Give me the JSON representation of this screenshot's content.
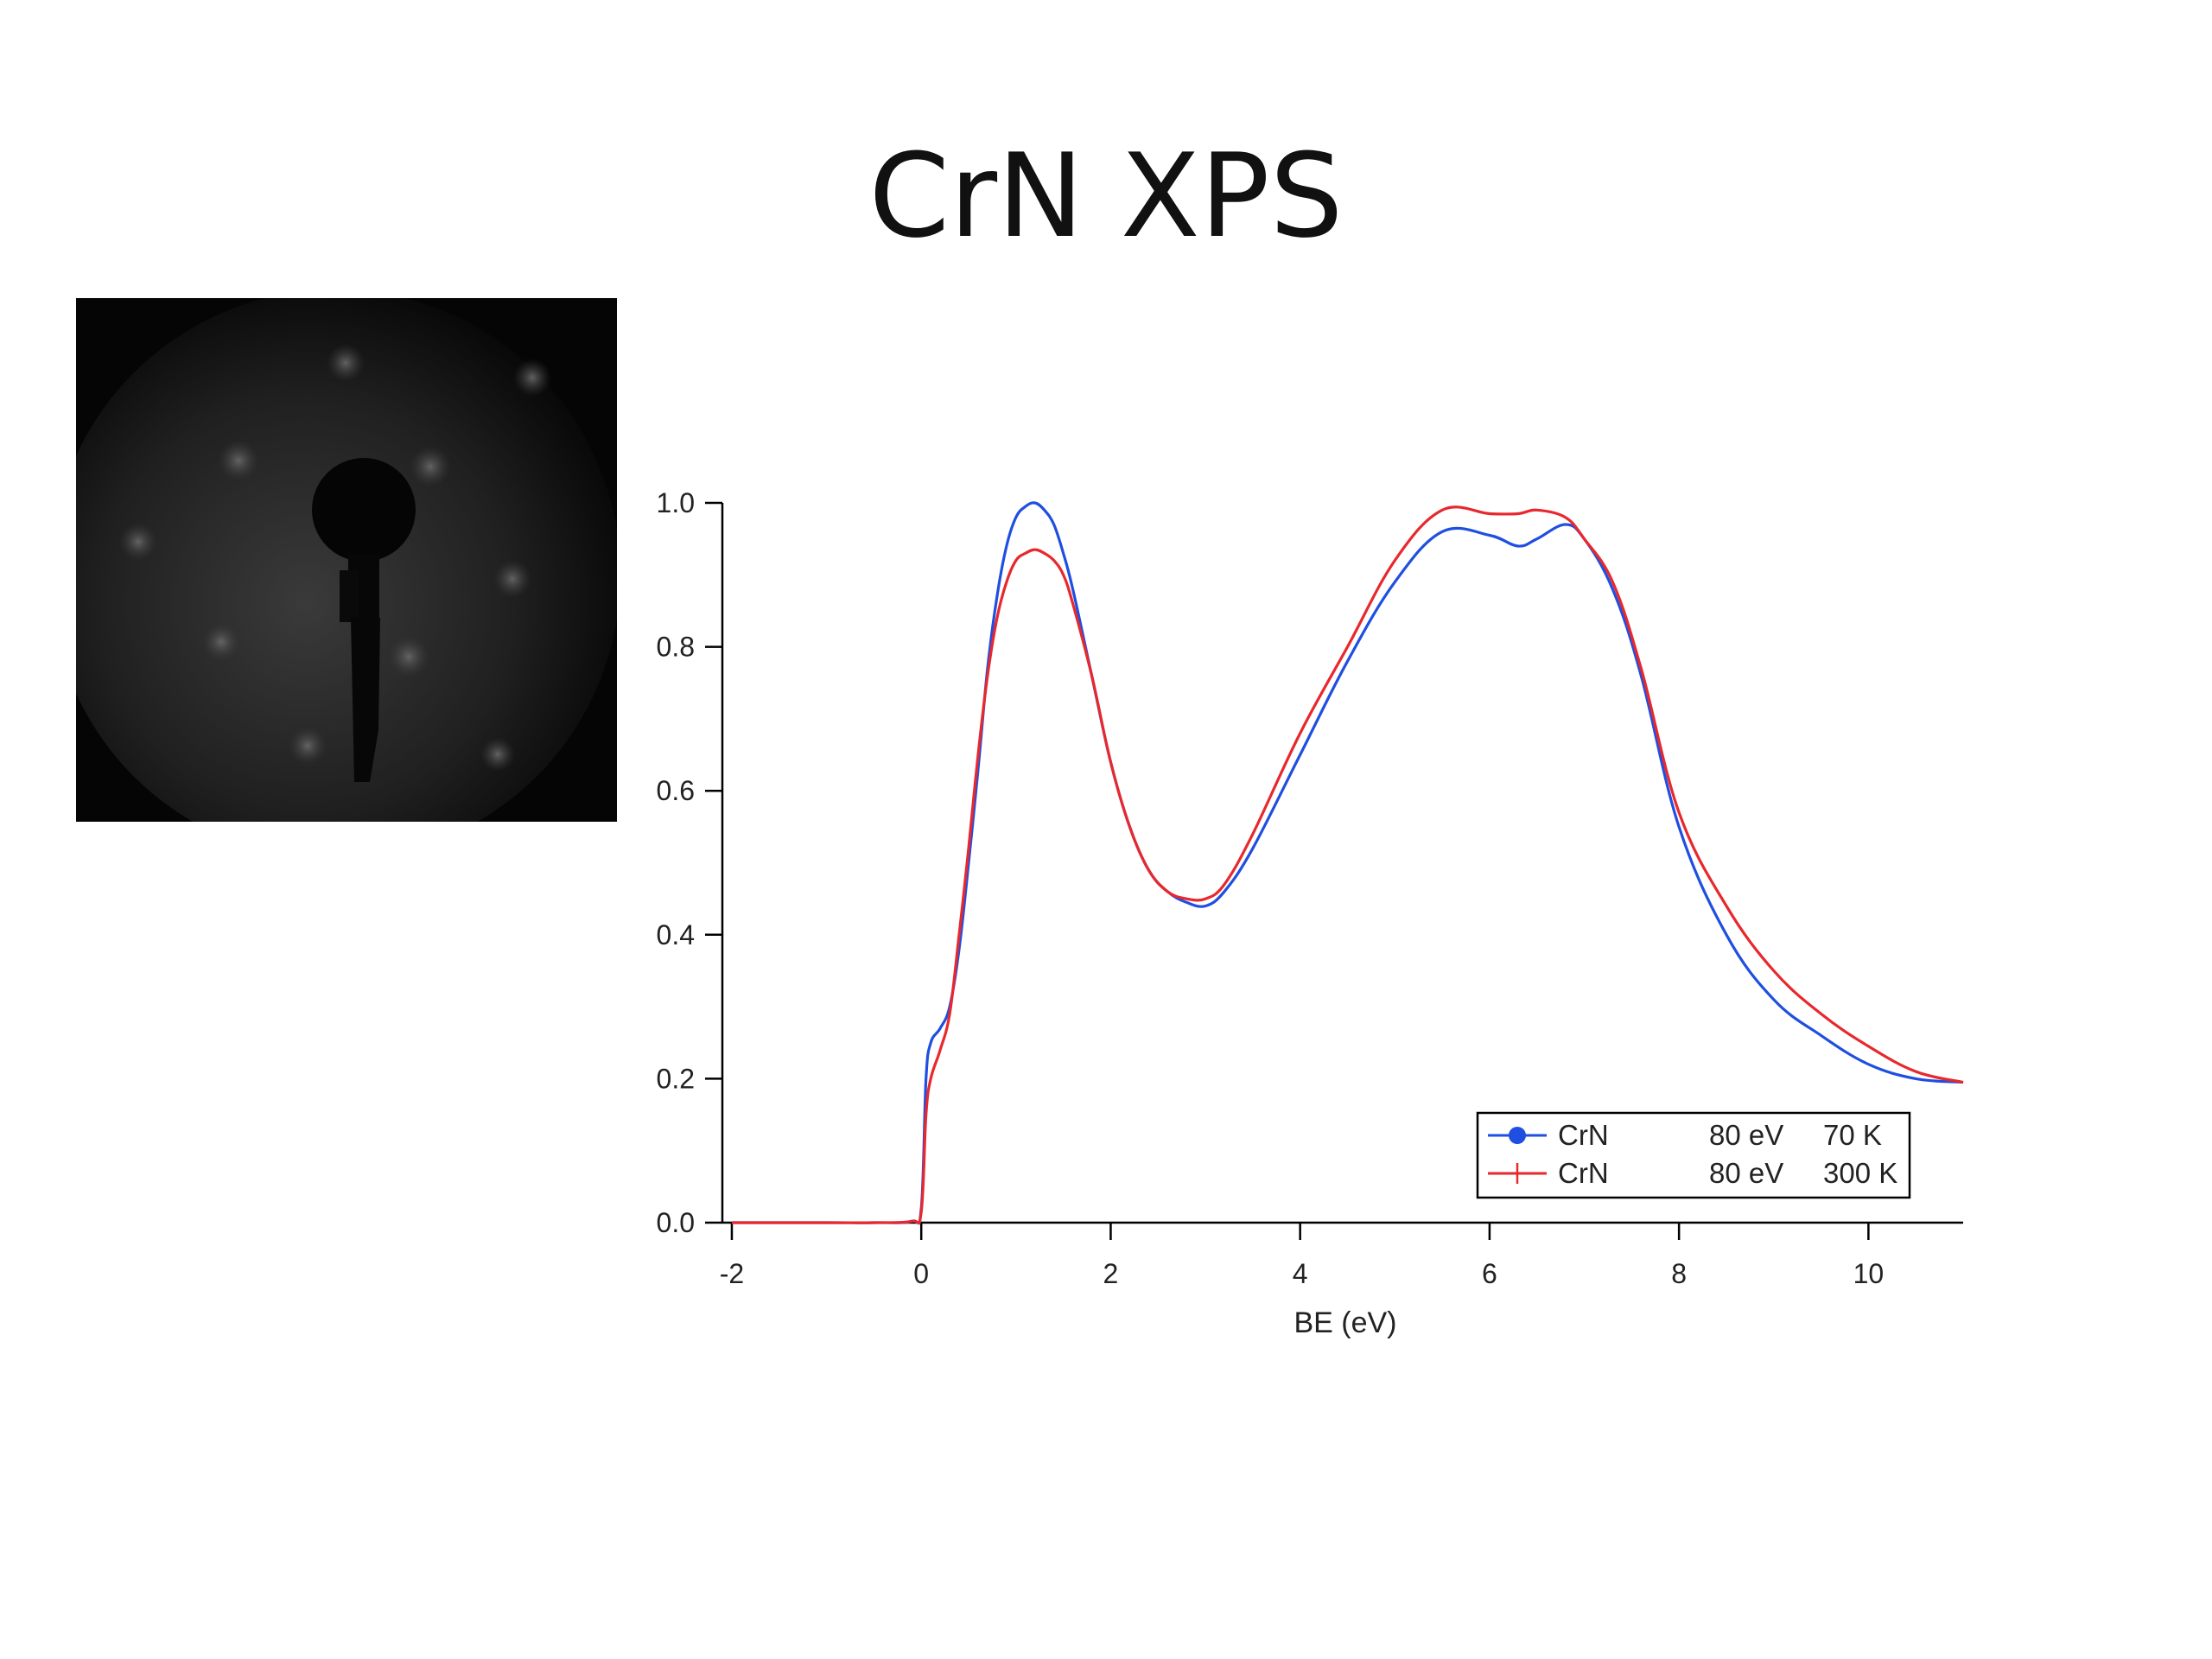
{
  "slide": {
    "title": "CrN XPS"
  },
  "image": {
    "description_icon": "leed-diffraction-pattern"
  },
  "chart_data": {
    "type": "line",
    "xlabel": "BE (eV)",
    "ylabel": "",
    "xlim": [
      -2.1,
      11.0
    ],
    "ylim": [
      0.0,
      1.0
    ],
    "xticks": [
      -2,
      0,
      2,
      4,
      6,
      8,
      10
    ],
    "yticks": [
      0.0,
      0.2,
      0.4,
      0.6,
      0.8,
      1.0
    ],
    "xtick_labels": [
      "-2",
      "0",
      "2",
      "4",
      "6",
      "8",
      "10"
    ],
    "ytick_labels": [
      "0.0",
      "0.2",
      "0.4",
      "0.6",
      "0.8",
      "1.0"
    ],
    "legend_position": "bottom-right",
    "grid": false,
    "series": [
      {
        "name": "CrN",
        "legend_energy": "80 eV",
        "legend_temp": "70 K",
        "color": "#1f4fe0",
        "marker": "circle",
        "x": [
          -2.0,
          -1.0,
          -0.5,
          -0.1,
          0.0,
          0.05,
          0.1,
          0.2,
          0.3,
          0.4,
          0.5,
          0.6,
          0.7,
          0.8,
          0.9,
          1.0,
          1.1,
          1.2,
          1.3,
          1.4,
          1.5,
          1.6,
          1.8,
          2.0,
          2.2,
          2.4,
          2.6,
          2.8,
          3.0,
          3.2,
          3.5,
          4.0,
          4.5,
          5.0,
          5.5,
          6.0,
          6.3,
          6.5,
          6.8,
          7.0,
          7.3,
          7.6,
          8.0,
          8.5,
          9.0,
          9.5,
          10.0,
          10.5,
          11.0
        ],
        "y": [
          0.0,
          0.0,
          0.0,
          0.002,
          0.02,
          0.2,
          0.25,
          0.27,
          0.3,
          0.38,
          0.5,
          0.63,
          0.77,
          0.87,
          0.94,
          0.98,
          0.995,
          1.0,
          0.99,
          0.97,
          0.93,
          0.88,
          0.76,
          0.64,
          0.55,
          0.49,
          0.46,
          0.445,
          0.44,
          0.46,
          0.52,
          0.65,
          0.78,
          0.89,
          0.96,
          0.955,
          0.94,
          0.95,
          0.97,
          0.95,
          0.88,
          0.76,
          0.55,
          0.4,
          0.31,
          0.26,
          0.22,
          0.2,
          0.195
        ]
      },
      {
        "name": "CrN",
        "legend_energy": "80 eV",
        "legend_temp": "300 K",
        "color": "#e8282c",
        "marker": "plus",
        "x": [
          -2.0,
          -1.0,
          -0.5,
          -0.1,
          0.0,
          0.05,
          0.1,
          0.2,
          0.3,
          0.4,
          0.5,
          0.6,
          0.7,
          0.8,
          0.9,
          1.0,
          1.1,
          1.2,
          1.3,
          1.4,
          1.5,
          1.6,
          1.8,
          2.0,
          2.2,
          2.4,
          2.6,
          2.8,
          3.0,
          3.2,
          3.5,
          4.0,
          4.5,
          5.0,
          5.5,
          6.0,
          6.3,
          6.5,
          6.8,
          7.0,
          7.3,
          7.6,
          8.0,
          8.5,
          9.0,
          9.5,
          10.0,
          10.5,
          11.0
        ],
        "y": [
          0.0,
          0.0,
          0.0,
          0.002,
          0.015,
          0.15,
          0.2,
          0.24,
          0.29,
          0.4,
          0.52,
          0.65,
          0.76,
          0.84,
          0.89,
          0.92,
          0.93,
          0.935,
          0.93,
          0.92,
          0.9,
          0.86,
          0.76,
          0.64,
          0.55,
          0.49,
          0.46,
          0.45,
          0.45,
          0.47,
          0.54,
          0.68,
          0.8,
          0.92,
          0.99,
          0.985,
          0.985,
          0.99,
          0.98,
          0.95,
          0.89,
          0.77,
          0.57,
          0.44,
          0.35,
          0.29,
          0.245,
          0.21,
          0.195
        ]
      }
    ]
  }
}
